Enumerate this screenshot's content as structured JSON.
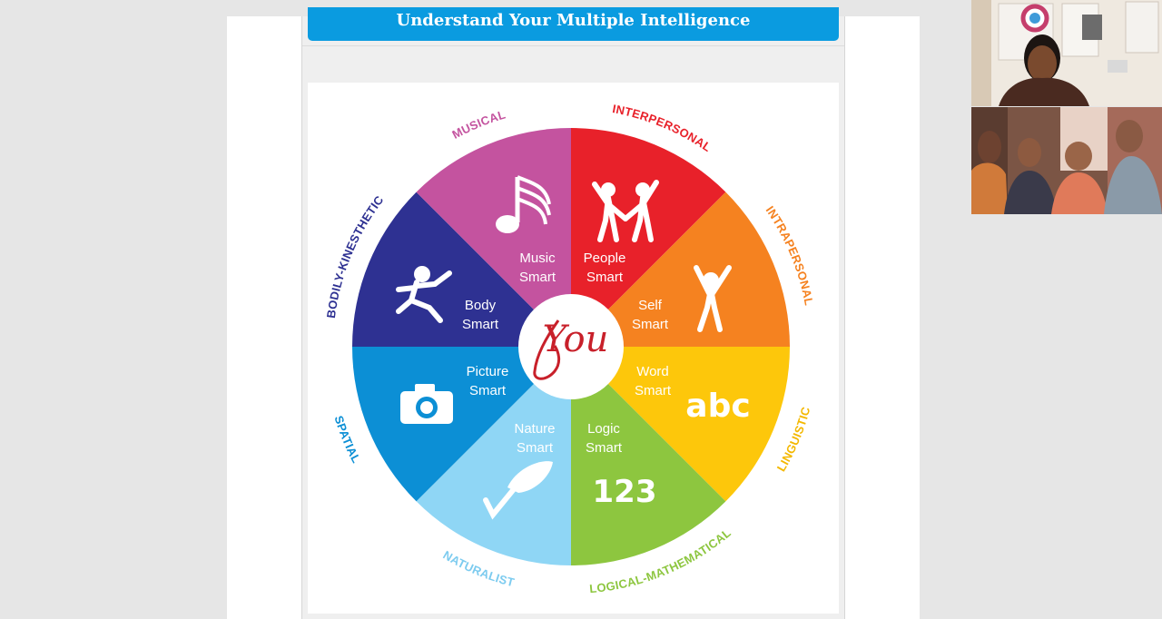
{
  "slide": {
    "title": "Understand Your Multiple Intelligence"
  },
  "wheel": {
    "center_text": "You",
    "segments": [
      {
        "id": "people",
        "line1": "People",
        "line2": "Smart",
        "outer": "INTERPERSONAL",
        "color": "#e8212a",
        "icon": "two-people-icon"
      },
      {
        "id": "self",
        "line1": "Self",
        "line2": "Smart",
        "outer": "INTRAPERSONAL",
        "color": "#f58220",
        "icon": "person-cheering-icon"
      },
      {
        "id": "word",
        "line1": "Word",
        "line2": "Smart",
        "outer": "LINGUISTIC",
        "color": "#fdc70b",
        "icon": "abc-text-icon",
        "icon_text": "abc"
      },
      {
        "id": "logic",
        "line1": "Logic",
        "line2": "Smart",
        "outer": "LOGICAL-MATHEMATICAL",
        "color": "#8dc63f",
        "icon": "numbers-icon",
        "icon_text": "123"
      },
      {
        "id": "nature",
        "line1": "Nature",
        "line2": "Smart",
        "outer": "NATURALIST",
        "color": "#8fd6f5",
        "icon": "leaf-icon"
      },
      {
        "id": "picture",
        "line1": "Picture",
        "line2": "Smart",
        "outer": "SPATIAL",
        "color": "#0c8fd5",
        "icon": "camera-icon"
      },
      {
        "id": "body",
        "line1": "Body",
        "line2": "Smart",
        "outer": "BODILY-KINESTHETIC",
        "color": "#2e3192",
        "icon": "running-person-icon"
      },
      {
        "id": "music",
        "line1": "Music",
        "line2": "Smart",
        "outer": "MUSICAL",
        "color": "#c4539f",
        "icon": "music-note-icon"
      }
    ]
  },
  "video": {
    "tiles": [
      {
        "id": "host",
        "description_icon": "participant-video-icon"
      },
      {
        "id": "family",
        "description_icon": "participant-video-icon"
      }
    ]
  }
}
